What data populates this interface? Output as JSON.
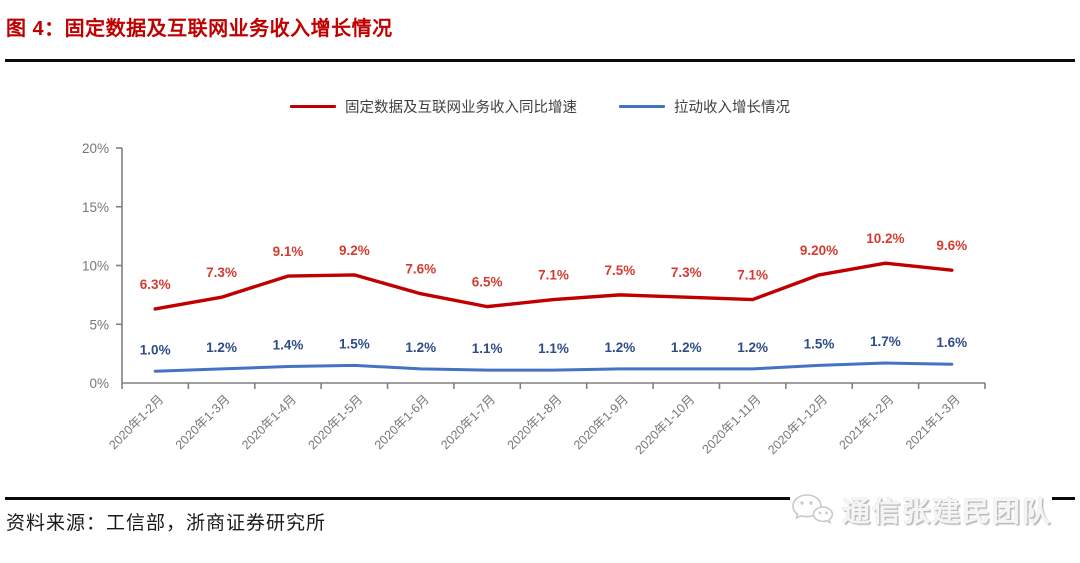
{
  "figure": {
    "title": "图 4：固定数据及互联网业务收入增长情况",
    "source": "资料来源：工信部，浙商证券研究所",
    "watermark": "通信张建民团队"
  },
  "colors": {
    "title": "#c00000",
    "rule": "#0a0a0a",
    "axis": "#808080",
    "tick_label": "#777777",
    "legend_text": "#3f3f3f",
    "watermark_text": "#f5f5f5"
  },
  "chart_data": {
    "type": "line",
    "title": "",
    "xlabel": "",
    "ylabel": "",
    "ylim": [
      0,
      20
    ],
    "yticks": [
      "0%",
      "5%",
      "10%",
      "15%",
      "20%"
    ],
    "grid": false,
    "legend_position": "top",
    "categories": [
      "2020年1-2月",
      "2020年1-3月",
      "2020年1-4月",
      "2020年1-5月",
      "2020年1-6月",
      "2020年1-7月",
      "2020年1-8月",
      "2020年1-9月",
      "2020年1-10月",
      "2020年1-11月",
      "2020年1-12月",
      "2021年1-2月",
      "2021年1-3月"
    ],
    "series": [
      {
        "name": "固定数据及互联网业务收入同比增速",
        "color": "#c00000",
        "label_color": "#d43b31",
        "stroke_width": 3.4,
        "label_offset": 20,
        "values": [
          6.3,
          7.3,
          9.1,
          9.2,
          7.6,
          6.5,
          7.1,
          7.5,
          7.3,
          7.1,
          9.2,
          10.2,
          9.6
        ],
        "labels": [
          "6.3%",
          "7.3%",
          "9.1%",
          "9.2%",
          "7.6%",
          "6.5%",
          "7.1%",
          "7.5%",
          "7.3%",
          "7.1%",
          "9.20%",
          "10.2%",
          "9.6%"
        ]
      },
      {
        "name": "拉动收入增长情况",
        "color": "#4472c4",
        "label_color": "#2e4b8a",
        "stroke_width": 3,
        "label_offset": 17,
        "values": [
          1.0,
          1.2,
          1.4,
          1.5,
          1.2,
          1.1,
          1.1,
          1.2,
          1.2,
          1.2,
          1.5,
          1.7,
          1.6
        ],
        "labels": [
          "1.0%",
          "1.2%",
          "1.4%",
          "1.5%",
          "1.2%",
          "1.1%",
          "1.1%",
          "1.2%",
          "1.2%",
          "1.2%",
          "1.5%",
          "1.7%",
          "1.6%"
        ]
      }
    ]
  }
}
